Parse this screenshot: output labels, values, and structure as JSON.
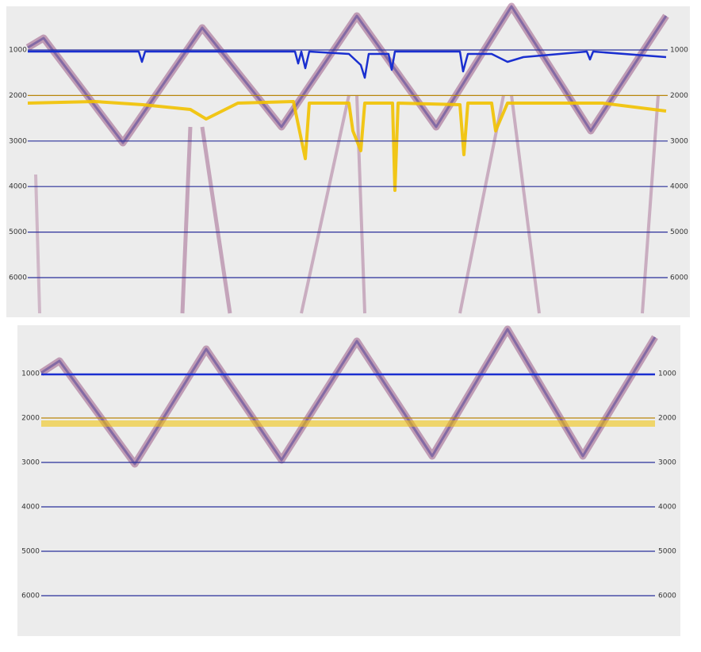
{
  "panels": [
    {
      "ticks": [
        "1000",
        "2000",
        "3000",
        "4000",
        "5000",
        "6000"
      ]
    },
    {
      "ticks": [
        "1000",
        "2000",
        "3000",
        "4000",
        "5000",
        "6000"
      ]
    }
  ]
}
